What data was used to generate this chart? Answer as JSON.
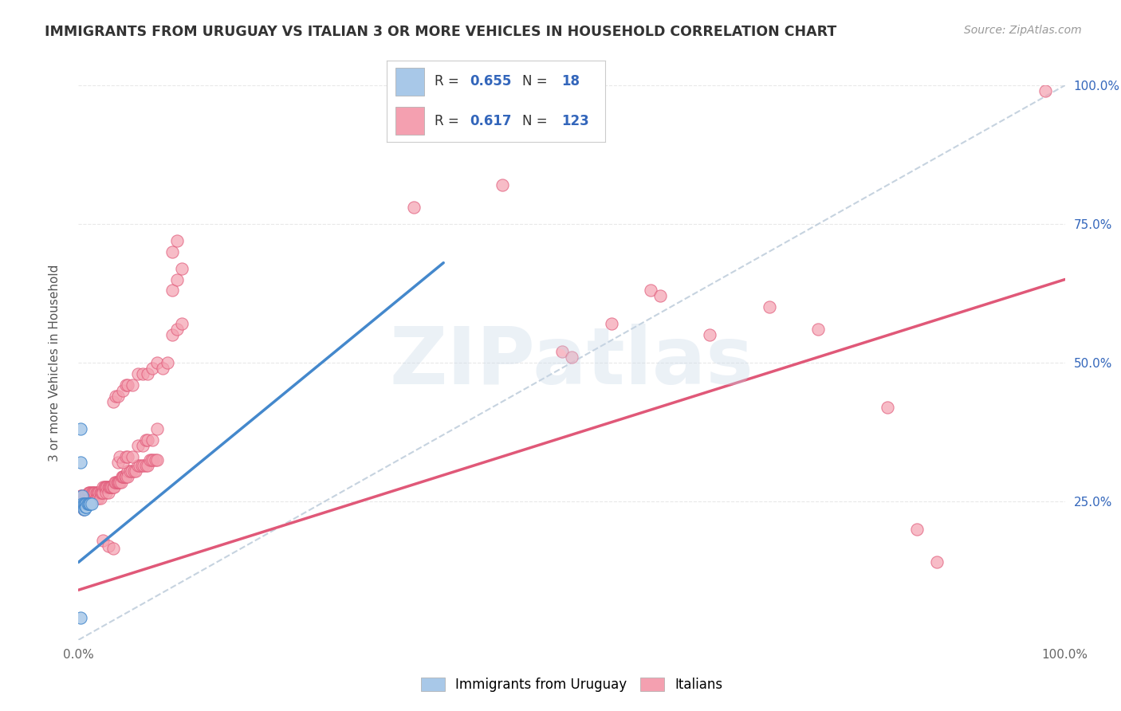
{
  "title": "IMMIGRANTS FROM URUGUAY VS ITALIAN 3 OR MORE VEHICLES IN HOUSEHOLD CORRELATION CHART",
  "source": "Source: ZipAtlas.com",
  "ylabel": "3 or more Vehicles in Household",
  "xlim": [
    0.0,
    1.0
  ],
  "ylim": [
    0.0,
    1.0
  ],
  "ytick_labels_right": [
    "100.0%",
    "75.0%",
    "50.0%",
    "25.0%"
  ],
  "ytick_positions_right": [
    1.0,
    0.75,
    0.5,
    0.25
  ],
  "watermark": "ZIPatlas",
  "blue_color": "#a8c8e8",
  "pink_color": "#f4a0b0",
  "blue_line_color": "#4488cc",
  "pink_line_color": "#e05878",
  "dashed_line_color": "#b8c8d8",
  "background_color": "#ffffff",
  "grid_color": "#e8e8e8",
  "title_color": "#333333",
  "source_color": "#999999",
  "legend_text_color": "#3366bb",
  "uruguay_points": [
    [
      0.002,
      0.38
    ],
    [
      0.002,
      0.32
    ],
    [
      0.004,
      0.26
    ],
    [
      0.004,
      0.245
    ],
    [
      0.005,
      0.245
    ],
    [
      0.005,
      0.235
    ],
    [
      0.006,
      0.245
    ],
    [
      0.006,
      0.235
    ],
    [
      0.007,
      0.245
    ],
    [
      0.007,
      0.24
    ],
    [
      0.008,
      0.245
    ],
    [
      0.008,
      0.24
    ],
    [
      0.009,
      0.245
    ],
    [
      0.01,
      0.245
    ],
    [
      0.011,
      0.245
    ],
    [
      0.012,
      0.245
    ],
    [
      0.013,
      0.245
    ],
    [
      0.002,
      0.04
    ]
  ],
  "italian_points": [
    [
      0.002,
      0.26
    ],
    [
      0.002,
      0.25
    ],
    [
      0.003,
      0.26
    ],
    [
      0.003,
      0.25
    ],
    [
      0.003,
      0.245
    ],
    [
      0.004,
      0.26
    ],
    [
      0.004,
      0.25
    ],
    [
      0.004,
      0.245
    ],
    [
      0.005,
      0.26
    ],
    [
      0.005,
      0.255
    ],
    [
      0.005,
      0.245
    ],
    [
      0.005,
      0.235
    ],
    [
      0.006,
      0.26
    ],
    [
      0.006,
      0.255
    ],
    [
      0.006,
      0.245
    ],
    [
      0.007,
      0.26
    ],
    [
      0.007,
      0.255
    ],
    [
      0.007,
      0.245
    ],
    [
      0.008,
      0.26
    ],
    [
      0.008,
      0.255
    ],
    [
      0.009,
      0.26
    ],
    [
      0.009,
      0.255
    ],
    [
      0.01,
      0.265
    ],
    [
      0.01,
      0.255
    ],
    [
      0.01,
      0.245
    ],
    [
      0.011,
      0.265
    ],
    [
      0.011,
      0.255
    ],
    [
      0.012,
      0.265
    ],
    [
      0.012,
      0.255
    ],
    [
      0.013,
      0.265
    ],
    [
      0.013,
      0.255
    ],
    [
      0.014,
      0.265
    ],
    [
      0.014,
      0.255
    ],
    [
      0.015,
      0.265
    ],
    [
      0.015,
      0.255
    ],
    [
      0.016,
      0.265
    ],
    [
      0.017,
      0.265
    ],
    [
      0.018,
      0.265
    ],
    [
      0.018,
      0.255
    ],
    [
      0.019,
      0.265
    ],
    [
      0.02,
      0.265
    ],
    [
      0.02,
      0.255
    ],
    [
      0.021,
      0.265
    ],
    [
      0.022,
      0.265
    ],
    [
      0.022,
      0.255
    ],
    [
      0.023,
      0.265
    ],
    [
      0.024,
      0.265
    ],
    [
      0.025,
      0.275
    ],
    [
      0.025,
      0.265
    ],
    [
      0.026,
      0.275
    ],
    [
      0.027,
      0.275
    ],
    [
      0.028,
      0.275
    ],
    [
      0.028,
      0.265
    ],
    [
      0.029,
      0.275
    ],
    [
      0.03,
      0.275
    ],
    [
      0.03,
      0.265
    ],
    [
      0.031,
      0.275
    ],
    [
      0.032,
      0.275
    ],
    [
      0.033,
      0.275
    ],
    [
      0.034,
      0.275
    ],
    [
      0.035,
      0.275
    ],
    [
      0.036,
      0.275
    ],
    [
      0.037,
      0.285
    ],
    [
      0.038,
      0.285
    ],
    [
      0.039,
      0.285
    ],
    [
      0.04,
      0.285
    ],
    [
      0.041,
      0.285
    ],
    [
      0.042,
      0.285
    ],
    [
      0.043,
      0.285
    ],
    [
      0.044,
      0.295
    ],
    [
      0.045,
      0.295
    ],
    [
      0.046,
      0.295
    ],
    [
      0.047,
      0.295
    ],
    [
      0.048,
      0.295
    ],
    [
      0.05,
      0.305
    ],
    [
      0.05,
      0.295
    ],
    [
      0.052,
      0.305
    ],
    [
      0.054,
      0.305
    ],
    [
      0.056,
      0.305
    ],
    [
      0.058,
      0.305
    ],
    [
      0.06,
      0.315
    ],
    [
      0.062,
      0.315
    ],
    [
      0.064,
      0.315
    ],
    [
      0.066,
      0.315
    ],
    [
      0.068,
      0.315
    ],
    [
      0.07,
      0.315
    ],
    [
      0.072,
      0.325
    ],
    [
      0.074,
      0.325
    ],
    [
      0.076,
      0.325
    ],
    [
      0.078,
      0.325
    ],
    [
      0.08,
      0.325
    ],
    [
      0.025,
      0.18
    ],
    [
      0.03,
      0.17
    ],
    [
      0.035,
      0.165
    ],
    [
      0.04,
      0.32
    ],
    [
      0.042,
      0.33
    ],
    [
      0.045,
      0.32
    ],
    [
      0.048,
      0.33
    ],
    [
      0.05,
      0.33
    ],
    [
      0.055,
      0.33
    ],
    [
      0.06,
      0.35
    ],
    [
      0.065,
      0.35
    ],
    [
      0.068,
      0.36
    ],
    [
      0.07,
      0.36
    ],
    [
      0.075,
      0.36
    ],
    [
      0.08,
      0.38
    ],
    [
      0.035,
      0.43
    ],
    [
      0.038,
      0.44
    ],
    [
      0.04,
      0.44
    ],
    [
      0.045,
      0.45
    ],
    [
      0.048,
      0.46
    ],
    [
      0.05,
      0.46
    ],
    [
      0.055,
      0.46
    ],
    [
      0.06,
      0.48
    ],
    [
      0.065,
      0.48
    ],
    [
      0.07,
      0.48
    ],
    [
      0.075,
      0.49
    ],
    [
      0.08,
      0.5
    ],
    [
      0.085,
      0.49
    ],
    [
      0.09,
      0.5
    ],
    [
      0.095,
      0.55
    ],
    [
      0.1,
      0.56
    ],
    [
      0.105,
      0.57
    ],
    [
      0.095,
      0.63
    ],
    [
      0.1,
      0.65
    ],
    [
      0.105,
      0.67
    ],
    [
      0.095,
      0.7
    ],
    [
      0.1,
      0.72
    ],
    [
      0.34,
      0.78
    ],
    [
      0.43,
      0.82
    ],
    [
      0.49,
      0.52
    ],
    [
      0.5,
      0.51
    ],
    [
      0.54,
      0.57
    ],
    [
      0.58,
      0.63
    ],
    [
      0.59,
      0.62
    ],
    [
      0.64,
      0.55
    ],
    [
      0.7,
      0.6
    ],
    [
      0.75,
      0.56
    ],
    [
      0.82,
      0.42
    ],
    [
      0.85,
      0.2
    ],
    [
      0.87,
      0.14
    ],
    [
      0.98,
      0.99
    ]
  ],
  "uruguay_line": {
    "x0": 0.0,
    "y0": 0.14,
    "x1": 0.37,
    "y1": 0.68
  },
  "italian_line": {
    "x0": 0.0,
    "y0": 0.09,
    "x1": 1.0,
    "y1": 0.65
  },
  "dashed_line": {
    "x0": 0.0,
    "y0": 0.0,
    "x1": 1.0,
    "y1": 1.0
  }
}
